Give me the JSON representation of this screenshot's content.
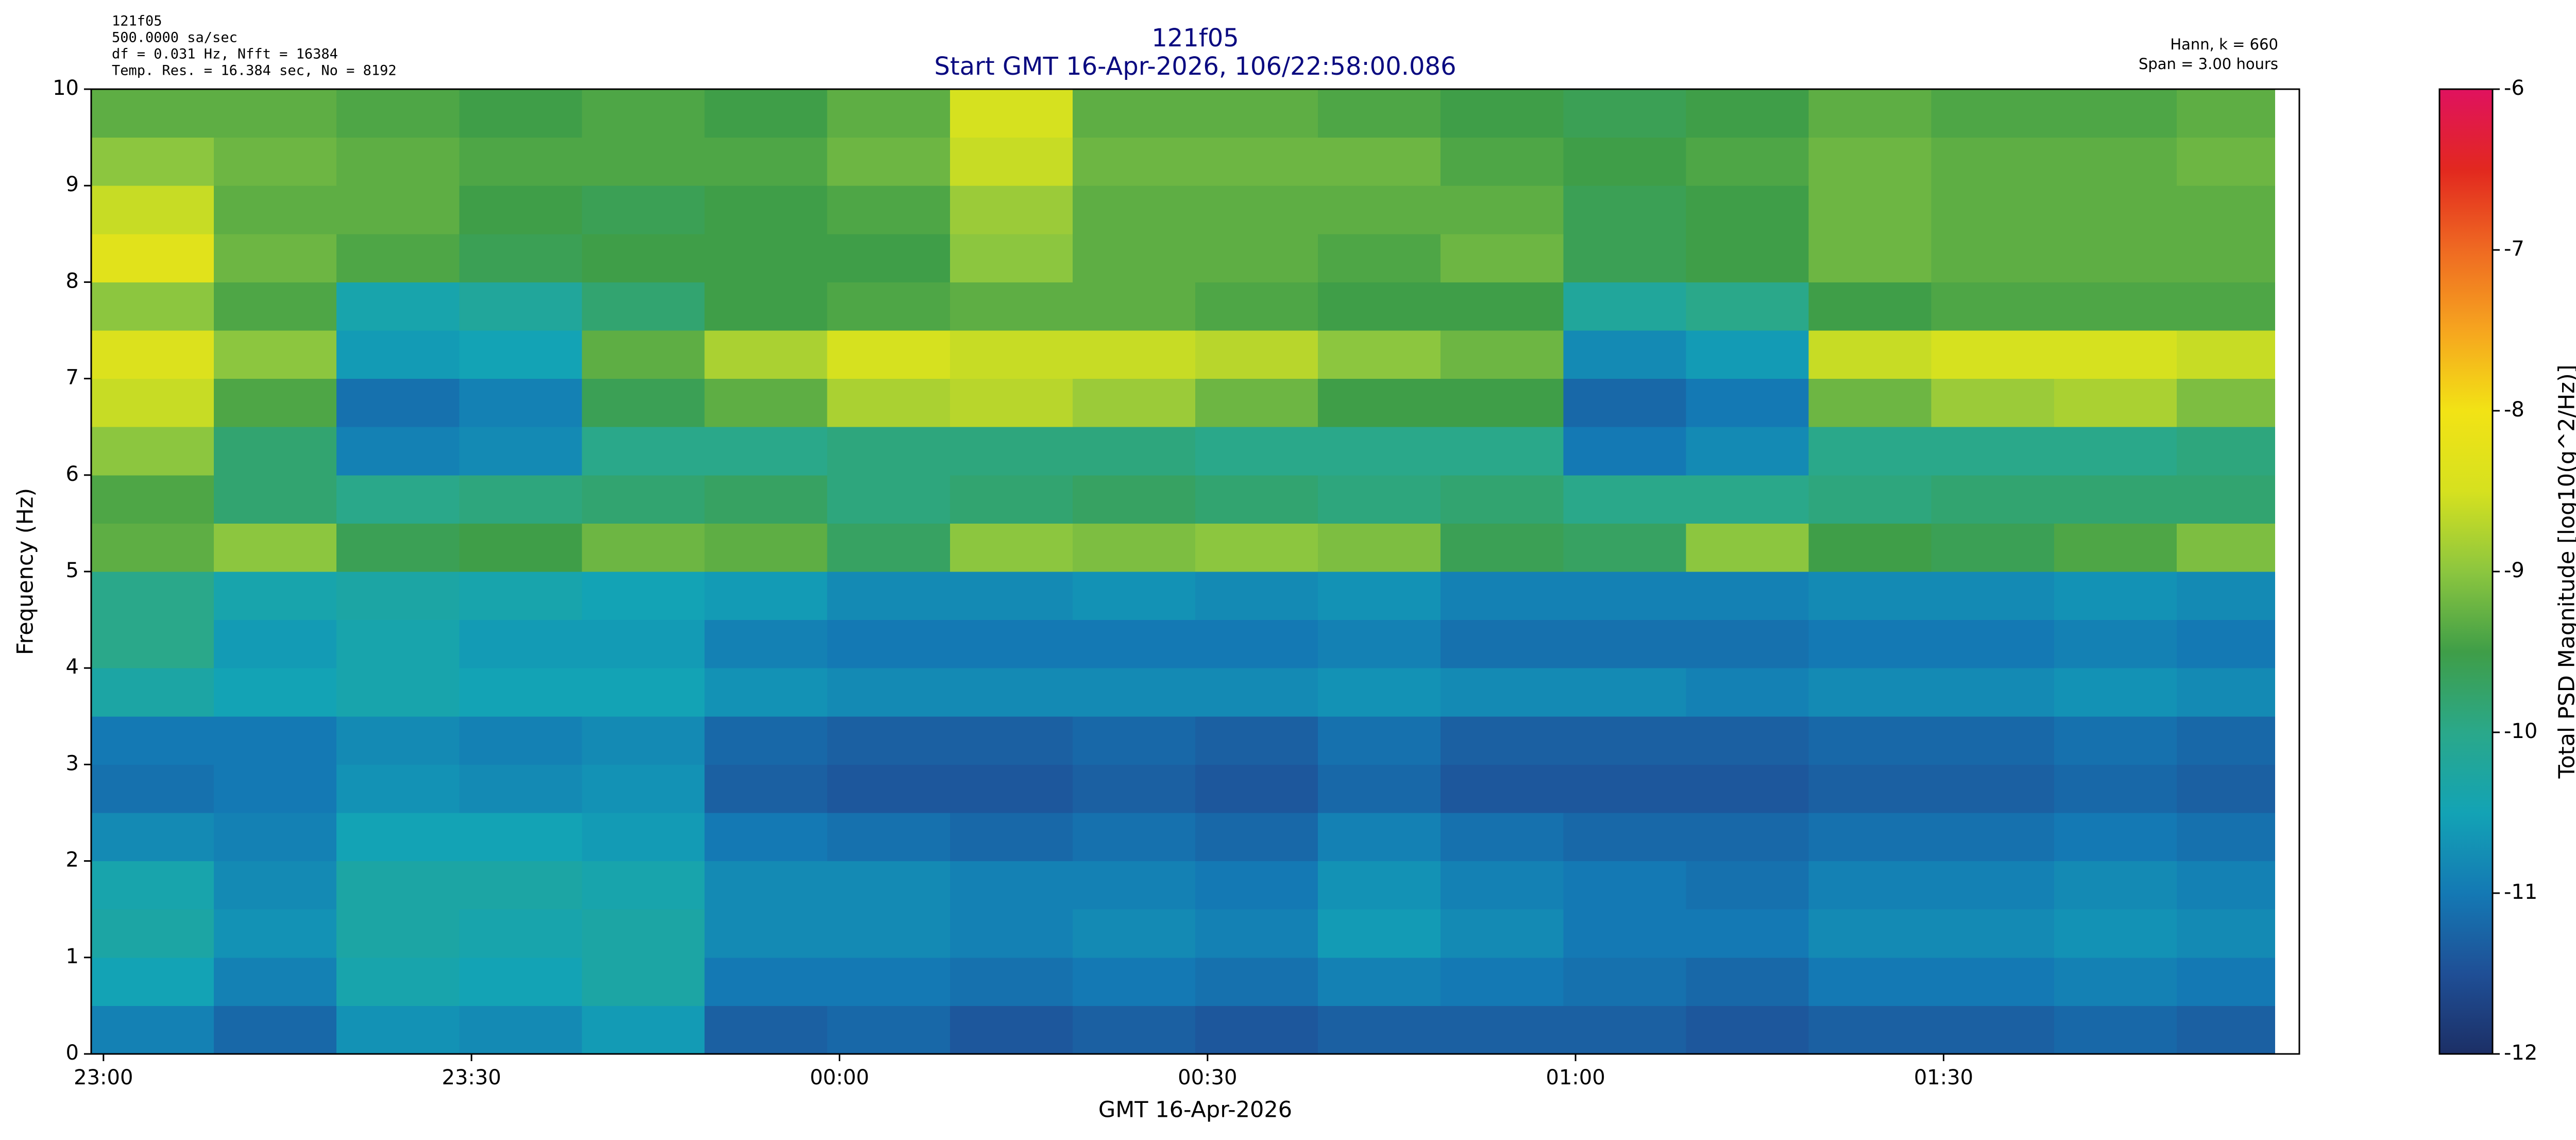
{
  "chart_data": {
    "type": "heatmap",
    "title": "121f05",
    "subtitle": "Start GMT 16-Apr-2026, 106/22:58:00.086",
    "info_left": [
      "121f05",
      "500.0000 sa/sec",
      "df = 0.031 Hz,  Nfft = 16384",
      "Temp. Res. = 16.384 sec, No = 8192"
    ],
    "info_right": [
      "Hann, k = 660",
      "Span = 3.00 hours"
    ],
    "xlabel": "GMT 16-Apr-2026",
    "ylabel": "Frequency (Hz)",
    "colorbar_label": "Total PSD Magnitude [log10(g^2/Hz)]",
    "xlim": [
      -1,
      179
    ],
    "xticks": [
      {
        "value": 0,
        "label": "23:00"
      },
      {
        "value": 30,
        "label": "23:30"
      },
      {
        "value": 60,
        "label": "00:00"
      },
      {
        "value": 90,
        "label": "00:30"
      },
      {
        "value": 120,
        "label": "01:00"
      },
      {
        "value": 150,
        "label": "01:30"
      }
    ],
    "ylim": [
      0,
      10
    ],
    "yticks": [
      0,
      1,
      2,
      3,
      4,
      5,
      6,
      7,
      8,
      9,
      10
    ],
    "clim": [
      -12,
      -6
    ],
    "cticks": [
      -12,
      -11,
      -10,
      -9,
      -8,
      -7,
      -6
    ],
    "colorscale": [
      "#1c2f66",
      "#1f4f96",
      "#1479b4",
      "#13a3b5",
      "#2aa88a",
      "#3f9e48",
      "#8cc63f",
      "#d6e11f",
      "#f2e315",
      "#f6a51f",
      "#ef6a22",
      "#e2281f",
      "#e0125f"
    ],
    "x_edges": [
      -1,
      9,
      19,
      29,
      39,
      49,
      59,
      69,
      79,
      89,
      99,
      109,
      119,
      129,
      139,
      149,
      159,
      169,
      177
    ],
    "y_edges": [
      0,
      0.5,
      1,
      1.5,
      2,
      2.5,
      3,
      3.5,
      4,
      4.5,
      5,
      5.5,
      6,
      6.5,
      7,
      7.5,
      8,
      8.5,
      9,
      9.5,
      10
    ],
    "z": [
      [
        -10.9,
        -11.2,
        -10.7,
        -10.8,
        -10.6,
        -11.3,
        -11.2,
        -11.4,
        -11.3,
        -11.4,
        -11.3,
        -11.3,
        -11.3,
        -11.4,
        -11.3,
        -11.3,
        -11.2,
        -11.3
      ],
      [
        -10.5,
        -10.9,
        -10.4,
        -10.5,
        -10.3,
        -11.0,
        -11.0,
        -11.1,
        -11.0,
        -11.1,
        -10.9,
        -11.0,
        -11.1,
        -11.2,
        -11.0,
        -11.0,
        -10.9,
        -11.0
      ],
      [
        -10.3,
        -10.7,
        -10.3,
        -10.4,
        -10.3,
        -10.8,
        -10.8,
        -10.9,
        -10.8,
        -10.9,
        -10.6,
        -10.8,
        -11.0,
        -11.0,
        -10.8,
        -10.8,
        -10.7,
        -10.8
      ],
      [
        -10.4,
        -10.8,
        -10.3,
        -10.3,
        -10.4,
        -10.8,
        -10.8,
        -10.9,
        -10.9,
        -11.0,
        -10.7,
        -10.9,
        -11.0,
        -11.1,
        -10.9,
        -10.9,
        -10.8,
        -10.9
      ],
      [
        -10.8,
        -10.9,
        -10.5,
        -10.5,
        -10.6,
        -11.0,
        -11.1,
        -11.2,
        -11.1,
        -11.2,
        -10.9,
        -11.1,
        -11.2,
        -11.2,
        -11.1,
        -11.1,
        -11.0,
        -11.1
      ],
      [
        -11.1,
        -11.0,
        -10.7,
        -10.8,
        -10.7,
        -11.3,
        -11.4,
        -11.4,
        -11.3,
        -11.4,
        -11.2,
        -11.4,
        -11.4,
        -11.4,
        -11.3,
        -11.3,
        -11.2,
        -11.3
      ],
      [
        -11.0,
        -11.0,
        -10.8,
        -10.9,
        -10.8,
        -11.2,
        -11.3,
        -11.3,
        -11.2,
        -11.3,
        -11.1,
        -11.3,
        -11.3,
        -11.3,
        -11.2,
        -11.2,
        -11.1,
        -11.2
      ],
      [
        -10.3,
        -10.5,
        -10.4,
        -10.5,
        -10.5,
        -10.7,
        -10.8,
        -10.8,
        -10.8,
        -10.8,
        -10.7,
        -10.8,
        -10.8,
        -10.9,
        -10.8,
        -10.8,
        -10.7,
        -10.8
      ],
      [
        -10.0,
        -10.6,
        -10.4,
        -10.6,
        -10.6,
        -10.9,
        -11.0,
        -11.0,
        -11.0,
        -11.0,
        -10.9,
        -11.1,
        -11.1,
        -11.1,
        -11.0,
        -11.0,
        -10.9,
        -11.0
      ],
      [
        -10.0,
        -10.4,
        -10.3,
        -10.4,
        -10.5,
        -10.6,
        -10.8,
        -10.8,
        -10.7,
        -10.8,
        -10.7,
        -10.9,
        -10.9,
        -10.9,
        -10.8,
        -10.8,
        -10.7,
        -10.8
      ],
      [
        -9.3,
        -9.0,
        -9.6,
        -9.5,
        -9.2,
        -9.3,
        -9.7,
        -9.0,
        -9.1,
        -9.0,
        -9.1,
        -9.6,
        -9.7,
        -9.0,
        -9.5,
        -9.6,
        -9.4,
        -9.1
      ],
      [
        -9.4,
        -9.8,
        -10.0,
        -9.9,
        -9.8,
        -9.7,
        -9.9,
        -9.8,
        -9.7,
        -9.8,
        -9.9,
        -9.8,
        -10.0,
        -10.0,
        -9.9,
        -9.8,
        -9.8,
        -9.8
      ],
      [
        -9.0,
        -9.8,
        -10.9,
        -10.8,
        -10.0,
        -10.0,
        -9.9,
        -9.9,
        -9.9,
        -10.0,
        -10.0,
        -10.0,
        -11.0,
        -10.8,
        -10.0,
        -10.0,
        -10.0,
        -9.9
      ],
      [
        -8.6,
        -9.4,
        -11.1,
        -10.9,
        -9.6,
        -9.3,
        -8.8,
        -8.7,
        -8.9,
        -9.2,
        -9.5,
        -9.5,
        -11.2,
        -11.0,
        -9.2,
        -8.9,
        -8.8,
        -9.1
      ],
      [
        -8.4,
        -9.0,
        -10.6,
        -10.5,
        -9.3,
        -8.8,
        -8.5,
        -8.6,
        -8.6,
        -8.7,
        -9.0,
        -9.2,
        -10.8,
        -10.6,
        -8.6,
        -8.5,
        -8.5,
        -8.6
      ],
      [
        -9.0,
        -9.4,
        -10.4,
        -10.2,
        -9.8,
        -9.5,
        -9.4,
        -9.3,
        -9.3,
        -9.4,
        -9.5,
        -9.5,
        -10.2,
        -10.0,
        -9.5,
        -9.4,
        -9.4,
        -9.4
      ],
      [
        -8.3,
        -9.2,
        -9.4,
        -9.6,
        -9.5,
        -9.5,
        -9.5,
        -9.0,
        -9.3,
        -9.3,
        -9.4,
        -9.2,
        -9.6,
        -9.5,
        -9.2,
        -9.3,
        -9.3,
        -9.3
      ],
      [
        -8.6,
        -9.3,
        -9.3,
        -9.5,
        -9.6,
        -9.5,
        -9.4,
        -8.9,
        -9.3,
        -9.3,
        -9.3,
        -9.3,
        -9.6,
        -9.5,
        -9.2,
        -9.3,
        -9.3,
        -9.3
      ],
      [
        -9.0,
        -9.2,
        -9.3,
        -9.4,
        -9.4,
        -9.4,
        -9.2,
        -8.6,
        -9.2,
        -9.2,
        -9.2,
        -9.4,
        -9.5,
        -9.4,
        -9.2,
        -9.3,
        -9.3,
        -9.2
      ],
      [
        -9.3,
        -9.3,
        -9.4,
        -9.5,
        -9.4,
        -9.5,
        -9.3,
        -8.5,
        -9.3,
        -9.3,
        -9.4,
        -9.5,
        -9.6,
        -9.5,
        -9.3,
        -9.4,
        -9.4,
        -9.3
      ]
    ]
  }
}
